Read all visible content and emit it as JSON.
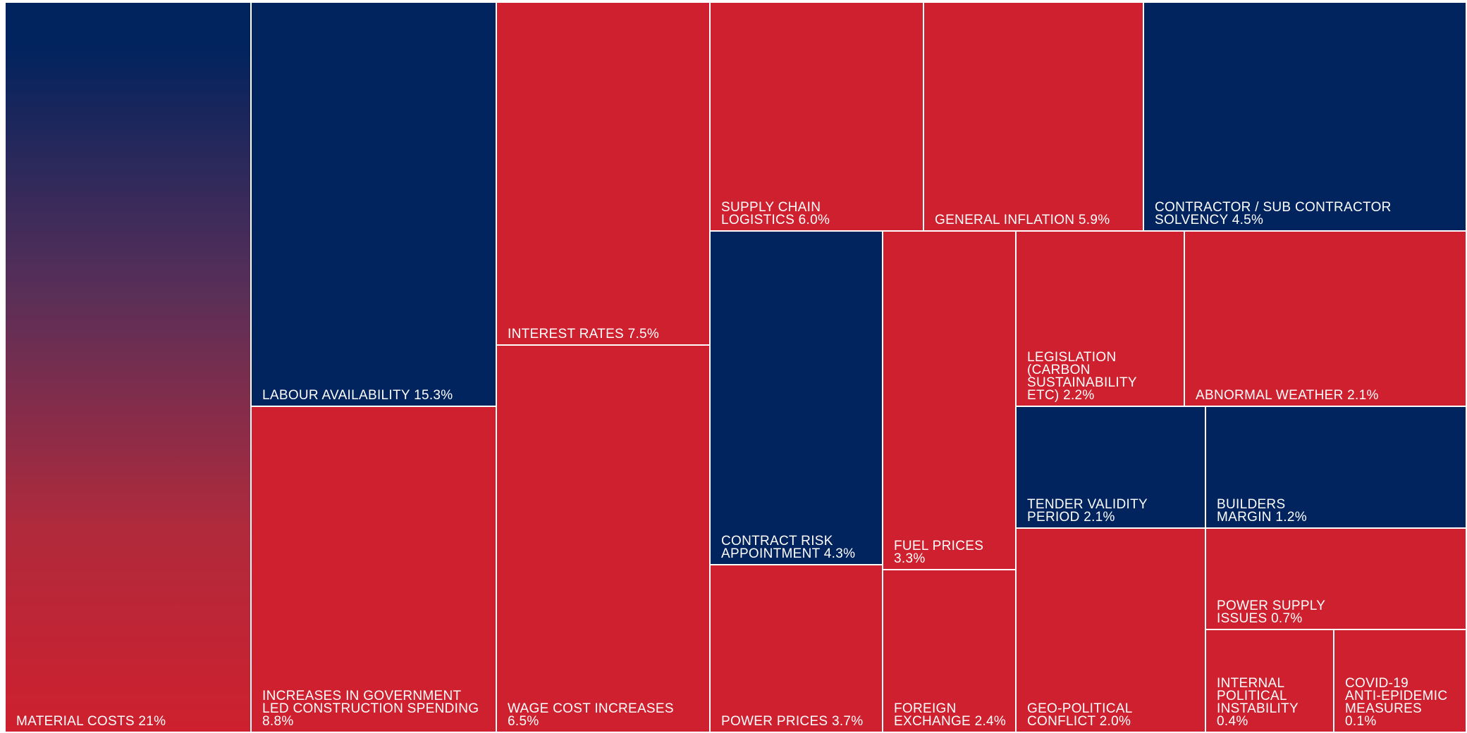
{
  "colors": {
    "navy": "#01235e",
    "red": "#ce202e",
    "border": "#ffffff"
  },
  "chart_data": {
    "type": "treemap",
    "title": "",
    "unit": "%",
    "items": [
      {
        "name": "MATERIAL COSTS",
        "value": 21,
        "label": "MATERIAL COSTS 21%",
        "fill": "gradient"
      },
      {
        "name": "LABOUR AVAILABILITY",
        "value": 15.3,
        "label": "LABOUR AVAILABILITY 15.3%",
        "fill": "navy"
      },
      {
        "name": "INCREASES IN GOVERNMENT LED CONSTRUCTION SPENDING",
        "value": 8.8,
        "label": "INCREASES IN GOVERNMENT\nLED CONSTRUCTION SPENDING\n8.8%",
        "fill": "red"
      },
      {
        "name": "INTEREST RATES",
        "value": 7.5,
        "label": "INTEREST RATES 7.5%",
        "fill": "red"
      },
      {
        "name": "WAGE COST INCREASES",
        "value": 6.5,
        "label": "WAGE COST INCREASES\n6.5%",
        "fill": "red"
      },
      {
        "name": "SUPPLY CHAIN LOGISTICS",
        "value": 6.0,
        "label": "SUPPLY CHAIN\nLOGISTICS 6.0%",
        "fill": "red"
      },
      {
        "name": "GENERAL INFLATION",
        "value": 5.9,
        "label": "GENERAL INFLATION 5.9%",
        "fill": "red"
      },
      {
        "name": "CONTRACTOR / SUB CONTRACTOR SOLVENCY",
        "value": 4.5,
        "label": "CONTRACTOR / SUB CONTRACTOR\nSOLVENCY 4.5%",
        "fill": "navy"
      },
      {
        "name": "CONTRACT RISK APPOINTMENT",
        "value": 4.3,
        "label": "CONTRACT RISK\nAPPOINTMENT 4.3%",
        "fill": "navy"
      },
      {
        "name": "POWER PRICES",
        "value": 3.7,
        "label": "POWER PRICES 3.7%",
        "fill": "red"
      },
      {
        "name": "FUEL PRICES",
        "value": 3.3,
        "label": "FUEL PRICES\n3.3%",
        "fill": "red"
      },
      {
        "name": "FOREIGN EXCHANGE",
        "value": 2.4,
        "label": "FOREIGN\nEXCHANGE 2.4%",
        "fill": "red"
      },
      {
        "name": "LEGISLATION (CARBON SUSTAINABILITY ETC)",
        "value": 2.2,
        "label": "LEGISLATION\n(CARBON\nSUSTAINABILITY\nETC) 2.2%",
        "fill": "red"
      },
      {
        "name": "ABNORMAL WEATHER",
        "value": 2.1,
        "label": "ABNORMAL WEATHER 2.1%",
        "fill": "red"
      },
      {
        "name": "TENDER VALIDITY PERIOD",
        "value": 2.1,
        "label": "TENDER VALIDITY\nPERIOD 2.1%",
        "fill": "navy"
      },
      {
        "name": "BUILDERS MARGIN",
        "value": 1.2,
        "label": "BUILDERS\nMARGIN 1.2%",
        "fill": "navy"
      },
      {
        "name": "GEO-POLITICAL CONFLICT",
        "value": 2.0,
        "label": "GEO-POLITICAL\nCONFLICT 2.0%",
        "fill": "red"
      },
      {
        "name": "POWER SUPPLY ISSUES",
        "value": 0.7,
        "label": "POWER SUPPLY\nISSUES 0.7%",
        "fill": "red"
      },
      {
        "name": "INTERNAL POLITICAL INSTABILITY",
        "value": 0.4,
        "label": "INTERNAL\nPOLITICAL\nINSTABILITY\n0.4%",
        "fill": "red"
      },
      {
        "name": "COVID-19 ANTI-EPIDEMIC MEASURES",
        "value": 0.1,
        "label": "COVID-19\nANTI-EPIDEMIC\nMEASURES\n0.1%",
        "fill": "red"
      }
    ]
  }
}
